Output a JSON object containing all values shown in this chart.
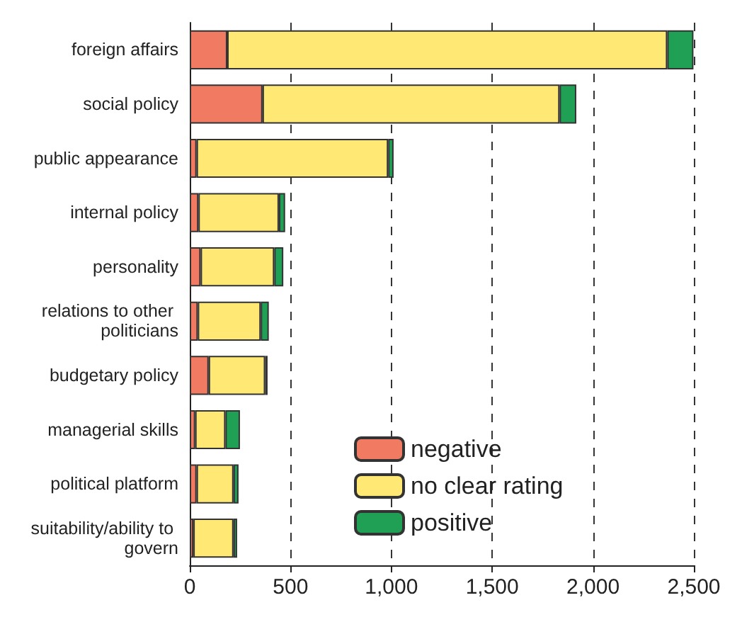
{
  "chart_data": {
    "type": "bar",
    "orientation": "horizontal",
    "stacked": true,
    "categories": [
      "foreign affairs",
      "social policy",
      "public appearance",
      "internal policy",
      "personality",
      "relations to other politicians",
      "budgetary policy",
      "managerial skills",
      "political platform",
      "suitability/ability to govern"
    ],
    "series": [
      {
        "name": "negative",
        "color": "#f07a62",
        "values": [
          186,
          361,
          34,
          43,
          54,
          40,
          94,
          27,
          34,
          18
        ]
      },
      {
        "name": "no clear rating",
        "color": "#ffe873",
        "values": [
          2182,
          1473,
          950,
          399,
          365,
          312,
          280,
          150,
          183,
          199
        ]
      },
      {
        "name": "positive",
        "color": "#1fa055",
        "values": [
          130,
          83,
          27,
          31,
          45,
          40,
          12,
          72,
          25,
          18
        ]
      }
    ],
    "xlim": [
      0,
      2500
    ],
    "xticks": [
      0,
      500,
      {
        "value": 1000,
        "label": "1,000"
      },
      {
        "value": 1500,
        "label": "1,500"
      },
      {
        "value": 2000,
        "label": "2,000"
      },
      {
        "value": 2500,
        "label": "2,500"
      }
    ],
    "grid": "x",
    "legend": "bottom right"
  }
}
